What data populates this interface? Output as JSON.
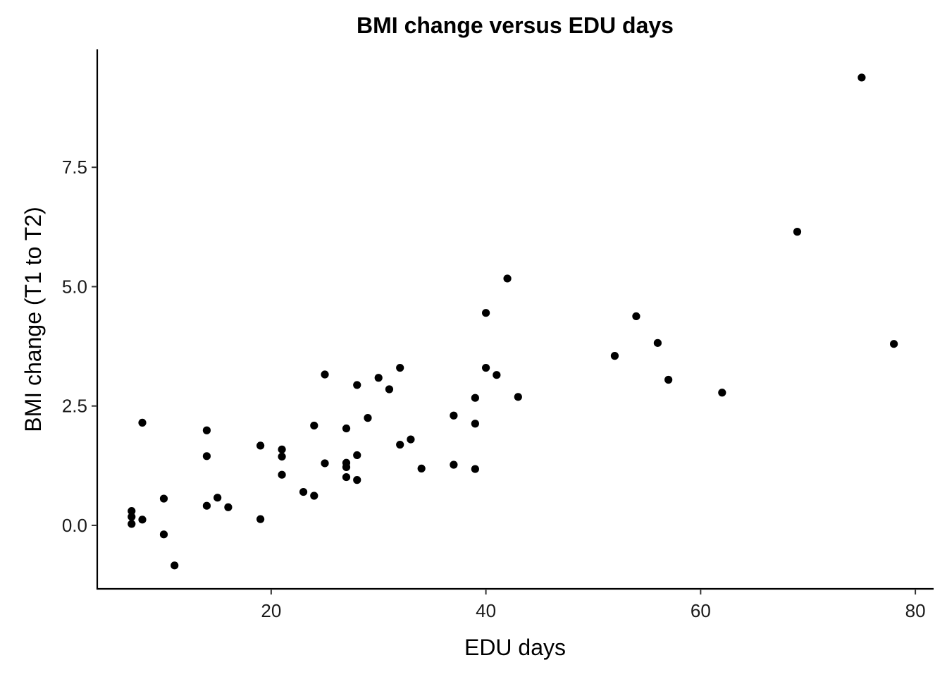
{
  "chart_data": {
    "type": "scatter",
    "title": "BMI change versus EDU days",
    "xlabel": "EDU days",
    "ylabel": "BMI change (T1 to T2)",
    "xlim": [
      3.8,
      81.7
    ],
    "ylim": [
      -1.33,
      9.97
    ],
    "x_ticks": [
      20,
      40,
      60,
      80
    ],
    "x_tick_labels": [
      "20",
      "40",
      "60",
      "80"
    ],
    "y_ticks": [
      0,
      2.5,
      5,
      7.5
    ],
    "y_tick_labels": [
      "0.0",
      "2.5",
      "5.0",
      "7.5"
    ],
    "grid": false,
    "legend": "none",
    "point_color": "#000000",
    "points": [
      {
        "x": 7,
        "y": 0.03
      },
      {
        "x": 7,
        "y": 0.18
      },
      {
        "x": 7,
        "y": 0.3
      },
      {
        "x": 8,
        "y": 0.12
      },
      {
        "x": 8,
        "y": 2.15
      },
      {
        "x": 10,
        "y": 0.56
      },
      {
        "x": 10,
        "y": -0.19
      },
      {
        "x": 11,
        "y": -0.84
      },
      {
        "x": 14,
        "y": 0.41
      },
      {
        "x": 14,
        "y": 1.45
      },
      {
        "x": 14,
        "y": 1.99
      },
      {
        "x": 15,
        "y": 0.58
      },
      {
        "x": 16,
        "y": 0.38
      },
      {
        "x": 19,
        "y": 0.13
      },
      {
        "x": 19,
        "y": 1.67
      },
      {
        "x": 21,
        "y": 1.06
      },
      {
        "x": 21,
        "y": 1.44
      },
      {
        "x": 21,
        "y": 1.59
      },
      {
        "x": 23,
        "y": 0.7
      },
      {
        "x": 24,
        "y": 0.62
      },
      {
        "x": 24,
        "y": 2.09
      },
      {
        "x": 25,
        "y": 1.3
      },
      {
        "x": 25,
        "y": 3.16
      },
      {
        "x": 27,
        "y": 1.01
      },
      {
        "x": 27,
        "y": 1.22
      },
      {
        "x": 27,
        "y": 1.31
      },
      {
        "x": 27,
        "y": 2.03
      },
      {
        "x": 28,
        "y": 0.95
      },
      {
        "x": 28,
        "y": 1.47
      },
      {
        "x": 28,
        "y": 2.94
      },
      {
        "x": 29,
        "y": 2.25
      },
      {
        "x": 30,
        "y": 3.09
      },
      {
        "x": 31,
        "y": 2.85
      },
      {
        "x": 32,
        "y": 1.69
      },
      {
        "x": 32,
        "y": 3.3
      },
      {
        "x": 33,
        "y": 1.8
      },
      {
        "x": 34,
        "y": 1.19
      },
      {
        "x": 37,
        "y": 1.27
      },
      {
        "x": 37,
        "y": 2.3
      },
      {
        "x": 39,
        "y": 1.18
      },
      {
        "x": 39,
        "y": 2.13
      },
      {
        "x": 39,
        "y": 2.67
      },
      {
        "x": 40,
        "y": 3.3
      },
      {
        "x": 40,
        "y": 4.45
      },
      {
        "x": 41,
        "y": 3.15
      },
      {
        "x": 42,
        "y": 5.17
      },
      {
        "x": 43,
        "y": 2.69
      },
      {
        "x": 52,
        "y": 3.55
      },
      {
        "x": 54,
        "y": 4.38
      },
      {
        "x": 56,
        "y": 3.82
      },
      {
        "x": 57,
        "y": 3.05
      },
      {
        "x": 62,
        "y": 2.78
      },
      {
        "x": 69,
        "y": 6.15
      },
      {
        "x": 75,
        "y": 9.38
      },
      {
        "x": 78,
        "y": 3.8
      }
    ]
  }
}
